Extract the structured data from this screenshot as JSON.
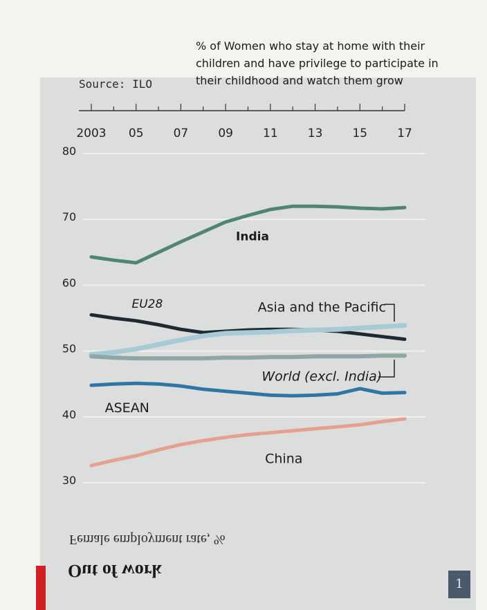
{
  "annotation": "% of Women who stay at home with their\nchildren and have privilege to participate in\ntheir childhood and watch them grow",
  "source": "Source: ILO",
  "flipped_title": "Female employment rate, %",
  "flipped_footer": "Out of work",
  "corner_badge": "1",
  "colors": {
    "india": "#4f8572",
    "eu28": "#1e2a30",
    "asia_pacific": "#a7cbd6",
    "world_excl_india": "#8ea6a4",
    "asean": "#2f76a6",
    "china": "#e7a08f",
    "red_bar": "#cf1f24"
  },
  "chart_data": {
    "type": "line",
    "x_tick_labels": [
      "2003",
      "05",
      "07",
      "09",
      "11",
      "13",
      "15",
      "17"
    ],
    "y_tick_labels": [
      "80",
      "70",
      "60",
      "50",
      "40",
      "30"
    ],
    "ylim": [
      30,
      80
    ],
    "xlim": [
      2003,
      2017
    ],
    "grid": true,
    "x": [
      2003,
      2004,
      2005,
      2006,
      2007,
      2008,
      2009,
      2010,
      2011,
      2012,
      2013,
      2014,
      2015,
      2016,
      2017
    ],
    "series": [
      {
        "name": "India",
        "key": "india",
        "values": [
          64.3,
          63.8,
          63.4,
          65.0,
          66.6,
          68.1,
          69.6,
          70.6,
          71.5,
          72.0,
          72.0,
          71.9,
          71.7,
          71.6,
          71.8
        ]
      },
      {
        "name": "EU28",
        "key": "eu28",
        "values": [
          55.5,
          55.0,
          54.6,
          54.0,
          53.3,
          52.8,
          53.0,
          53.2,
          53.3,
          53.3,
          53.2,
          53.0,
          52.6,
          52.2,
          51.8
        ]
      },
      {
        "name": "Asia and the Pacific",
        "key": "asia_pacific",
        "values": [
          49.5,
          49.8,
          50.3,
          51.0,
          51.7,
          52.3,
          52.7,
          52.8,
          52.9,
          53.1,
          53.2,
          53.3,
          53.5,
          53.7,
          53.9
        ]
      },
      {
        "name": "World (excl. India)",
        "key": "world_excl_india",
        "values": [
          49.2,
          49.0,
          48.9,
          48.9,
          48.9,
          48.9,
          49.0,
          49.0,
          49.1,
          49.1,
          49.2,
          49.2,
          49.2,
          49.3,
          49.3
        ]
      },
      {
        "name": "ASEAN",
        "key": "asean",
        "values": [
          44.8,
          45.0,
          45.1,
          45.0,
          44.7,
          44.2,
          43.9,
          43.6,
          43.3,
          43.2,
          43.3,
          43.5,
          44.3,
          43.6,
          43.7
        ]
      },
      {
        "name": "China",
        "key": "china",
        "values": [
          32.6,
          33.4,
          34.1,
          35.0,
          35.8,
          36.4,
          36.9,
          37.3,
          37.6,
          37.9,
          38.2,
          38.5,
          38.8,
          39.3,
          39.7
        ]
      }
    ]
  }
}
